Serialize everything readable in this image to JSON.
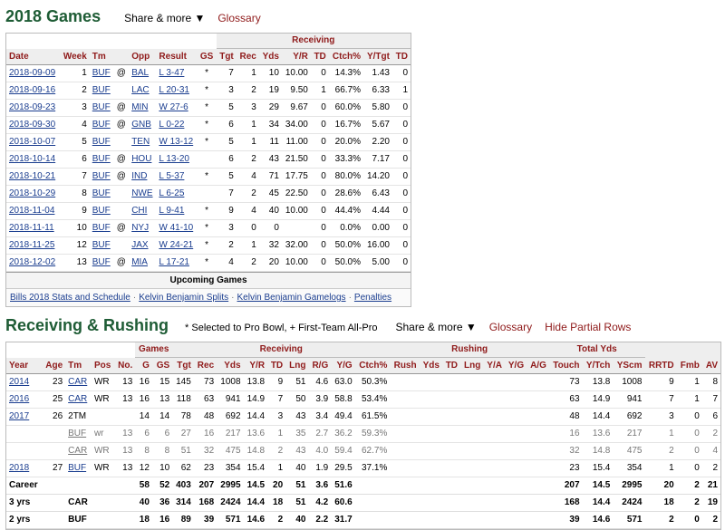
{
  "games_section": {
    "title": "2018 Games",
    "share_label": "Share & more ▼",
    "glossary_label": "Glossary",
    "group_label": "Receiving",
    "columns": [
      "Date",
      "Week",
      "Tm",
      "",
      "Opp",
      "Result",
      "GS",
      "Tgt",
      "Rec",
      "Yds",
      "Y/R",
      "TD",
      "Ctch%",
      "Y/Tgt",
      "TD"
    ],
    "rows": [
      [
        "2018-09-09",
        "1",
        "BUF",
        "@",
        "BAL",
        "L 3-47",
        "*",
        "7",
        "1",
        "10",
        "10.00",
        "0",
        "14.3%",
        "1.43",
        "0"
      ],
      [
        "2018-09-16",
        "2",
        "BUF",
        "",
        "LAC",
        "L 20-31",
        "*",
        "3",
        "2",
        "19",
        "9.50",
        "1",
        "66.7%",
        "6.33",
        "1"
      ],
      [
        "2018-09-23",
        "3",
        "BUF",
        "@",
        "MIN",
        "W 27-6",
        "*",
        "5",
        "3",
        "29",
        "9.67",
        "0",
        "60.0%",
        "5.80",
        "0"
      ],
      [
        "2018-09-30",
        "4",
        "BUF",
        "@",
        "GNB",
        "L 0-22",
        "*",
        "6",
        "1",
        "34",
        "34.00",
        "0",
        "16.7%",
        "5.67",
        "0"
      ],
      [
        "2018-10-07",
        "5",
        "BUF",
        "",
        "TEN",
        "W 13-12",
        "*",
        "5",
        "1",
        "11",
        "11.00",
        "0",
        "20.0%",
        "2.20",
        "0"
      ],
      [
        "2018-10-14",
        "6",
        "BUF",
        "@",
        "HOU",
        "L 13-20",
        "",
        "6",
        "2",
        "43",
        "21.50",
        "0",
        "33.3%",
        "7.17",
        "0"
      ],
      [
        "2018-10-21",
        "7",
        "BUF",
        "@",
        "IND",
        "L 5-37",
        "*",
        "5",
        "4",
        "71",
        "17.75",
        "0",
        "80.0%",
        "14.20",
        "0"
      ],
      [
        "2018-10-29",
        "8",
        "BUF",
        "",
        "NWE",
        "L 6-25",
        "",
        "7",
        "2",
        "45",
        "22.50",
        "0",
        "28.6%",
        "6.43",
        "0"
      ],
      [
        "2018-11-04",
        "9",
        "BUF",
        "",
        "CHI",
        "L 9-41",
        "*",
        "9",
        "4",
        "40",
        "10.00",
        "0",
        "44.4%",
        "4.44",
        "0"
      ],
      [
        "2018-11-11",
        "10",
        "BUF",
        "@",
        "NYJ",
        "W 41-10",
        "*",
        "3",
        "0",
        "0",
        "",
        "0",
        "0.0%",
        "0.00",
        "0"
      ],
      [
        "2018-11-25",
        "12",
        "BUF",
        "",
        "JAX",
        "W 24-21",
        "*",
        "2",
        "1",
        "32",
        "32.00",
        "0",
        "50.0%",
        "16.00",
        "0"
      ],
      [
        "2018-12-02",
        "13",
        "BUF",
        "@",
        "MIA",
        "L 17-21",
        "*",
        "4",
        "2",
        "20",
        "10.00",
        "0",
        "50.0%",
        "5.00",
        "0"
      ]
    ],
    "upcoming_label": "Upcoming Games",
    "footer_links": [
      "Bills 2018 Stats and Schedule",
      "Kelvin Benjamin Splits",
      "Kelvin Benjamin Gamelogs",
      "Penalties"
    ]
  },
  "rr_section": {
    "title": "Receiving & Rushing",
    "note": "* Selected to Pro Bowl, + First-Team All-Pro",
    "share_label": "Share & more ▼",
    "glossary_label": "Glossary",
    "hide_label": "Hide Partial Rows",
    "groups": {
      "games": "Games",
      "receiving": "Receiving",
      "rushing": "Rushing",
      "total": "Total Yds"
    },
    "columns": [
      "Year",
      "Age",
      "Tm",
      "Pos",
      "No.",
      "G",
      "GS",
      "Tgt",
      "Rec",
      "Yds",
      "Y/R",
      "TD",
      "Lng",
      "R/G",
      "Y/G",
      "Ctch%",
      "Rush",
      "Yds",
      "TD",
      "Lng",
      "Y/A",
      "Y/G",
      "A/G",
      "Touch",
      "Y/Tch",
      "YScm",
      "RRTD",
      "Fmb",
      "AV"
    ],
    "rows": [
      {
        "cells": [
          "2014",
          "23",
          "CAR",
          "WR",
          "13",
          "16",
          "15",
          "145",
          "73",
          "1008",
          "13.8",
          "9",
          "51",
          "4.6",
          "63.0",
          "50.3%",
          "",
          "",
          "",
          "",
          "",
          "",
          "",
          "73",
          "13.8",
          "1008",
          "9",
          "1",
          "8"
        ],
        "partial": false,
        "yr_link": true,
        "tm_link": true
      },
      {
        "cells": [
          "2016",
          "25",
          "CAR",
          "WR",
          "13",
          "16",
          "13",
          "118",
          "63",
          "941",
          "14.9",
          "7",
          "50",
          "3.9",
          "58.8",
          "53.4%",
          "",
          "",
          "",
          "",
          "",
          "",
          "",
          "63",
          "14.9",
          "941",
          "7",
          "1",
          "7"
        ],
        "partial": false,
        "yr_link": true,
        "tm_link": true
      },
      {
        "cells": [
          "2017",
          "26",
          "2TM",
          "",
          "",
          "14",
          "14",
          "78",
          "48",
          "692",
          "14.4",
          "3",
          "43",
          "3.4",
          "49.4",
          "61.5%",
          "",
          "",
          "",
          "",
          "",
          "",
          "",
          "48",
          "14.4",
          "692",
          "3",
          "0",
          "6"
        ],
        "partial": false,
        "yr_link": true,
        "tm_link": false
      },
      {
        "cells": [
          "",
          "",
          "BUF",
          "wr",
          "13",
          "6",
          "6",
          "27",
          "16",
          "217",
          "13.6",
          "1",
          "35",
          "2.7",
          "36.2",
          "59.3%",
          "",
          "",
          "",
          "",
          "",
          "",
          "",
          "16",
          "13.6",
          "217",
          "1",
          "0",
          "2"
        ],
        "partial": true,
        "yr_link": false,
        "tm_link": true
      },
      {
        "cells": [
          "",
          "",
          "CAR",
          "WR",
          "13",
          "8",
          "8",
          "51",
          "32",
          "475",
          "14.8",
          "2",
          "43",
          "4.0",
          "59.4",
          "62.7%",
          "",
          "",
          "",
          "",
          "",
          "",
          "",
          "32",
          "14.8",
          "475",
          "2",
          "0",
          "4"
        ],
        "partial": true,
        "yr_link": false,
        "tm_link": true
      },
      {
        "cells": [
          "2018",
          "27",
          "BUF",
          "WR",
          "13",
          "12",
          "10",
          "62",
          "23",
          "354",
          "15.4",
          "1",
          "40",
          "1.9",
          "29.5",
          "37.1%",
          "",
          "",
          "",
          "",
          "",
          "",
          "",
          "23",
          "15.4",
          "354",
          "1",
          "0",
          "2"
        ],
        "partial": false,
        "yr_link": true,
        "tm_link": true
      }
    ],
    "totals": [
      [
        "Career",
        "",
        "",
        "",
        "",
        "58",
        "52",
        "403",
        "207",
        "2995",
        "14.5",
        "20",
        "51",
        "3.6",
        "51.6",
        "",
        "",
        "",
        "",
        "",
        "",
        "",
        "",
        "207",
        "14.5",
        "2995",
        "20",
        "2",
        "21"
      ],
      [
        "3 yrs",
        "",
        "CAR",
        "",
        "",
        "40",
        "36",
        "314",
        "168",
        "2424",
        "14.4",
        "18",
        "51",
        "4.2",
        "60.6",
        "",
        "",
        "",
        "",
        "",
        "",
        "",
        "",
        "168",
        "14.4",
        "2424",
        "18",
        "2",
        "19"
      ],
      [
        "2 yrs",
        "",
        "BUF",
        "",
        "",
        "18",
        "16",
        "89",
        "39",
        "571",
        "14.6",
        "2",
        "40",
        "2.2",
        "31.7",
        "",
        "",
        "",
        "",
        "",
        "",
        "",
        "",
        "39",
        "14.6",
        "571",
        "2",
        "0",
        "2"
      ]
    ]
  }
}
